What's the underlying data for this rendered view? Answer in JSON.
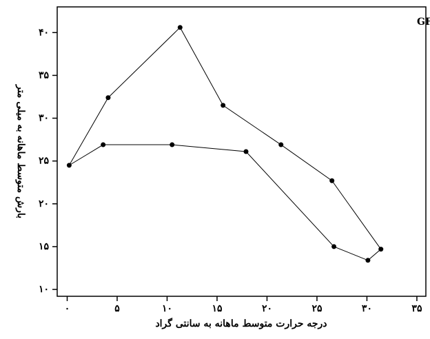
{
  "chart_data": {
    "type": "line",
    "title": "شبیه سازی مدل GFDL",
    "xlabel": "درجه حرارت متوسط ماهانه به سانتی گراد",
    "ylabel": "بارش متوسط ماهانه به میلی متر",
    "x": [
      0.2,
      4.1,
      11.3,
      15.6,
      21.4,
      26.5,
      31.4,
      30.1,
      26.7,
      17.9,
      10.5,
      3.6
    ],
    "values": [
      24.5,
      32.4,
      40.6,
      31.5,
      26.9,
      22.7,
      14.7,
      13.4,
      15.0,
      26.1,
      26.9,
      26.9
    ],
    "closed": true,
    "color": "#000000",
    "xlim": [
      -1,
      35.9
    ],
    "ylim": [
      9.2,
      43
    ],
    "xticks": [
      {
        "value": 0,
        "label": "۰"
      },
      {
        "value": 5,
        "label": "۵"
      },
      {
        "value": 10,
        "label": "۱۰"
      },
      {
        "value": 15,
        "label": "۱۵"
      },
      {
        "value": 20,
        "label": "۲۰"
      },
      {
        "value": 25,
        "label": "۲۵"
      },
      {
        "value": 30,
        "label": "۳۰"
      },
      {
        "value": 35,
        "label": "۳۵"
      }
    ],
    "yticks": [
      {
        "value": 10,
        "label": "۱۰"
      },
      {
        "value": 15,
        "label": "۱۵"
      },
      {
        "value": 20,
        "label": "۲۰"
      },
      {
        "value": 25,
        "label": "۲۵"
      },
      {
        "value": 30,
        "label": "۳۰"
      },
      {
        "value": 35,
        "label": "۳۵"
      },
      {
        "value": 40,
        "label": "۴۰"
      }
    ]
  }
}
